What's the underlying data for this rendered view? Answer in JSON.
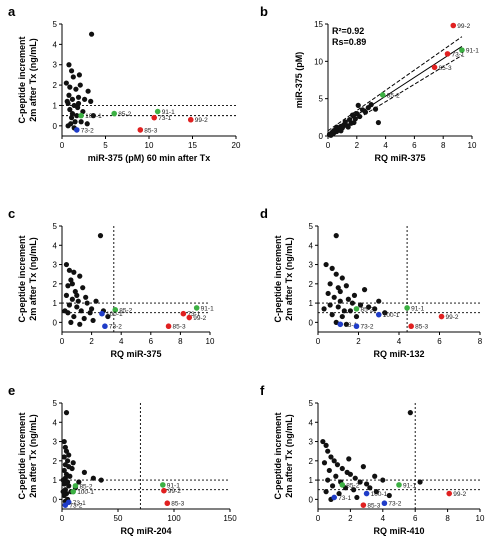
{
  "colors": {
    "black": "#111111",
    "green": "#3cb043",
    "red": "#e02020",
    "blue": "#1f3cc8"
  },
  "chart_data": [
    {
      "panel": "a",
      "type": "scatter",
      "xlabel": "miR-375 (pM) 60 min after Tx",
      "ylabel": [
        "C-peptide increment",
        "2m after Tx (ng/mL)"
      ],
      "xlim": [
        0,
        20
      ],
      "ylim": [
        -0.5,
        5
      ],
      "xticks": [
        0,
        5,
        10,
        15,
        20
      ],
      "yticks": [
        0,
        1,
        2,
        3,
        4,
        5
      ],
      "hlines": [
        1.0,
        0.5
      ],
      "black_points": [
        [
          0.8,
          3.0
        ],
        [
          1.1,
          2.7
        ],
        [
          1.3,
          2.4
        ],
        [
          2.0,
          2.5
        ],
        [
          2.1,
          2.0
        ],
        [
          0.9,
          1.9
        ],
        [
          1.6,
          1.8
        ],
        [
          0.8,
          1.5
        ],
        [
          1.2,
          1.3
        ],
        [
          1.9,
          1.4
        ],
        [
          0.6,
          1.2
        ],
        [
          1.4,
          1.0
        ],
        [
          1.8,
          0.9
        ],
        [
          0.9,
          0.8
        ],
        [
          1.2,
          0.6
        ],
        [
          2.4,
          0.7
        ],
        [
          1.1,
          0.4
        ],
        [
          1.5,
          0.2
        ],
        [
          2.2,
          0.2
        ],
        [
          0.7,
          0.0
        ],
        [
          1.4,
          -0.1
        ],
        [
          3.4,
          4.5
        ],
        [
          3.0,
          1.7
        ],
        [
          3.3,
          1.2
        ],
        [
          3.6,
          0.5
        ],
        [
          2.9,
          0.1
        ],
        [
          0.5,
          2.1
        ],
        [
          0.7,
          1.1
        ],
        [
          1.0,
          0.1
        ],
        [
          1.9,
          1.1
        ],
        [
          2.6,
          1.3
        ],
        [
          1.7,
          0.5
        ]
      ],
      "labeled_points": [
        {
          "label": "100-1",
          "x": 2.2,
          "y": 0.5,
          "color": "green"
        },
        {
          "label": "73-2",
          "x": 1.7,
          "y": -0.2,
          "color": "blue"
        },
        {
          "label": "85-2",
          "x": 6.0,
          "y": 0.6,
          "color": "green"
        },
        {
          "label": "91-1",
          "x": 11.0,
          "y": 0.7,
          "color": "green"
        },
        {
          "label": "73-1",
          "x": 10.6,
          "y": 0.4,
          "color": "red"
        },
        {
          "label": "99-2",
          "x": 14.8,
          "y": 0.3,
          "color": "red"
        },
        {
          "label": "85-3",
          "x": 9.0,
          "y": -0.2,
          "color": "red"
        }
      ]
    },
    {
      "panel": "b",
      "type": "scatter",
      "xlabel": "RQ miR-375",
      "ylabel": [
        "miR-375 (pM)"
      ],
      "xlim": [
        0,
        10
      ],
      "ylim": [
        0,
        15
      ],
      "xticks": [
        0,
        2,
        4,
        6,
        8,
        10
      ],
      "yticks": [
        0,
        5,
        10,
        15
      ],
      "annotations": [
        "R²=0.92",
        "Rs=0.89"
      ],
      "fit_line": [
        [
          0,
          0.3
        ],
        [
          9.3,
          12.0
        ]
      ],
      "ci_upper": [
        [
          0,
          0.7
        ],
        [
          9.3,
          13.3
        ]
      ],
      "ci_lower": [
        [
          0,
          -0.1
        ],
        [
          9.3,
          10.8
        ]
      ],
      "black_points": [
        [
          0.1,
          0.2
        ],
        [
          0.2,
          0.3
        ],
        [
          0.3,
          0.5
        ],
        [
          0.4,
          0.4
        ],
        [
          0.5,
          0.8
        ],
        [
          0.6,
          0.6
        ],
        [
          0.7,
          1.0
        ],
        [
          0.8,
          0.9
        ],
        [
          0.9,
          1.3
        ],
        [
          1.0,
          1.1
        ],
        [
          1.1,
          1.5
        ],
        [
          1.2,
          1.9
        ],
        [
          1.3,
          1.4
        ],
        [
          1.5,
          2.2
        ],
        [
          1.6,
          1.7
        ],
        [
          1.7,
          2.8
        ],
        [
          1.9,
          2.3
        ],
        [
          2.0,
          3.0
        ],
        [
          2.2,
          2.6
        ],
        [
          2.4,
          3.5
        ],
        [
          2.6,
          3.2
        ],
        [
          2.8,
          3.8
        ],
        [
          3.0,
          4.2
        ],
        [
          3.3,
          3.6
        ],
        [
          0.4,
          0.7
        ],
        [
          0.9,
          0.7
        ],
        [
          1.4,
          1.2
        ],
        [
          0.2,
          0.1
        ],
        [
          0.6,
          1.2
        ],
        [
          1.8,
          1.8
        ],
        [
          2.1,
          4.1
        ],
        [
          3.5,
          1.8
        ]
      ],
      "labeled_points": [
        {
          "label": "99-2",
          "x": 8.7,
          "y": 14.8,
          "color": "red"
        },
        {
          "label": "91-1",
          "x": 9.3,
          "y": 11.5,
          "color": "green"
        },
        {
          "label": "73-1",
          "x": 8.3,
          "y": 11.0,
          "color": "red"
        },
        {
          "label": "85-3",
          "x": 7.4,
          "y": 9.2,
          "color": "red"
        },
        {
          "label": "85-2",
          "x": 3.8,
          "y": 5.5,
          "color": "green"
        }
      ]
    },
    {
      "panel": "c",
      "type": "scatter",
      "xlabel": "RQ miR-375",
      "ylabel": [
        "C-peptide increment",
        "2m after Tx (ng/mL)"
      ],
      "xlim": [
        0,
        10
      ],
      "ylim": [
        -0.5,
        5
      ],
      "xticks": [
        0,
        2,
        4,
        6,
        8,
        10
      ],
      "yticks": [
        0,
        1,
        2,
        3,
        4,
        5
      ],
      "hlines": [
        1.0,
        0.5
      ],
      "vline": 3.5,
      "black_points": [
        [
          0.3,
          3.0
        ],
        [
          0.5,
          2.7
        ],
        [
          0.8,
          2.6
        ],
        [
          0.6,
          2.2
        ],
        [
          1.2,
          2.4
        ],
        [
          0.4,
          1.9
        ],
        [
          0.9,
          1.6
        ],
        [
          1.4,
          1.8
        ],
        [
          0.3,
          1.4
        ],
        [
          0.7,
          1.2
        ],
        [
          1.1,
          1.1
        ],
        [
          1.6,
          1.3
        ],
        [
          0.5,
          0.9
        ],
        [
          1.0,
          0.8
        ],
        [
          1.3,
          0.6
        ],
        [
          2.0,
          0.7
        ],
        [
          0.4,
          0.5
        ],
        [
          0.8,
          0.3
        ],
        [
          1.5,
          0.2
        ],
        [
          1.9,
          0.5
        ],
        [
          0.6,
          0.0
        ],
        [
          1.2,
          -0.1
        ],
        [
          2.6,
          4.5
        ],
        [
          2.3,
          1.1
        ],
        [
          2.8,
          0.6
        ],
        [
          3.1,
          0.3
        ],
        [
          1.7,
          1.0
        ],
        [
          0.2,
          0.6
        ],
        [
          2.1,
          0.1
        ],
        [
          1.0,
          1.4
        ],
        [
          0.7,
          2.0
        ]
      ],
      "labeled_points": [
        {
          "label": "85-2",
          "x": 3.6,
          "y": 0.65,
          "color": "green"
        },
        {
          "label": "73-2",
          "x": 2.9,
          "y": -0.2,
          "color": "blue"
        },
        {
          "label": "100-1",
          "x": 2.7,
          "y": 0.45,
          "color": "blue"
        },
        {
          "label": "73-1",
          "x": 8.2,
          "y": 0.45,
          "color": "red"
        },
        {
          "label": "91-1",
          "x": 9.1,
          "y": 0.75,
          "color": "green"
        },
        {
          "label": "99-2",
          "x": 8.6,
          "y": 0.25,
          "color": "red"
        },
        {
          "label": "85-3",
          "x": 7.2,
          "y": -0.2,
          "color": "red"
        }
      ]
    },
    {
      "panel": "d",
      "type": "scatter",
      "xlabel": "RQ miR-132",
      "ylabel": [
        "C-peptide increment",
        "2m after Tx (ng/mL)"
      ],
      "xlim": [
        0,
        8
      ],
      "ylim": [
        -0.5,
        5
      ],
      "xticks": [
        0,
        2,
        4,
        6,
        8
      ],
      "yticks": [
        0,
        1,
        2,
        3,
        4,
        5
      ],
      "hlines": [
        1.0,
        0.5
      ],
      "vline": 4.4,
      "black_points": [
        [
          0.4,
          3.0
        ],
        [
          0.7,
          2.8
        ],
        [
          0.9,
          2.5
        ],
        [
          1.2,
          2.3
        ],
        [
          0.6,
          2.0
        ],
        [
          1.0,
          1.8
        ],
        [
          1.4,
          1.9
        ],
        [
          0.5,
          1.5
        ],
        [
          0.8,
          1.3
        ],
        [
          1.1,
          1.1
        ],
        [
          1.5,
          1.2
        ],
        [
          1.8,
          1.4
        ],
        [
          0.6,
          0.9
        ],
        [
          1.0,
          0.8
        ],
        [
          1.3,
          0.6
        ],
        [
          0.7,
          0.4
        ],
        [
          1.2,
          0.3
        ],
        [
          1.6,
          0.6
        ],
        [
          0.9,
          0.0
        ],
        [
          1.4,
          -0.1
        ],
        [
          0.9,
          4.5
        ],
        [
          3.0,
          1.1
        ],
        [
          2.8,
          0.7
        ],
        [
          3.3,
          0.5
        ],
        [
          2.1,
          0.9
        ],
        [
          1.9,
          0.3
        ],
        [
          0.3,
          0.7
        ],
        [
          2.5,
          0.8
        ],
        [
          1.7,
          1.0
        ],
        [
          1.1,
          1.6
        ],
        [
          2.3,
          1.7
        ]
      ],
      "labeled_points": [
        {
          "label": "85-2",
          "x": 1.9,
          "y": 0.7,
          "color": "green"
        },
        {
          "label": "73-1",
          "x": 1.1,
          "y": -0.1,
          "color": "blue"
        },
        {
          "label": "73-2",
          "x": 1.9,
          "y": -0.2,
          "color": "blue"
        },
        {
          "label": "100-1",
          "x": 3.0,
          "y": 0.4,
          "color": "blue"
        },
        {
          "label": "91-1",
          "x": 4.4,
          "y": 0.75,
          "color": "green"
        },
        {
          "label": "85-3",
          "x": 4.6,
          "y": -0.2,
          "color": "red"
        },
        {
          "label": "99-2",
          "x": 6.1,
          "y": 0.3,
          "color": "red"
        }
      ]
    },
    {
      "panel": "e",
      "type": "scatter",
      "xlabel": "RQ miR-204",
      "ylabel": [
        "C-peptide increment",
        "2m after Tx (ng/mL)"
      ],
      "xlim": [
        0,
        150
      ],
      "ylim": [
        -0.5,
        5
      ],
      "xticks": [
        0,
        50,
        100,
        150
      ],
      "yticks": [
        0,
        1,
        2,
        3,
        4,
        5
      ],
      "hlines": [
        1.0,
        0.5
      ],
      "vline": 70,
      "black_points": [
        [
          2,
          3.0
        ],
        [
          3,
          2.7
        ],
        [
          4,
          2.5
        ],
        [
          2,
          2.2
        ],
        [
          5,
          2.0
        ],
        [
          3,
          1.8
        ],
        [
          6,
          1.7
        ],
        [
          2,
          1.5
        ],
        [
          4,
          1.3
        ],
        [
          7,
          1.2
        ],
        [
          3,
          1.1
        ],
        [
          5,
          0.9
        ],
        [
          2,
          0.8
        ],
        [
          6,
          0.7
        ],
        [
          3,
          0.5
        ],
        [
          4,
          0.3
        ],
        [
          2,
          0.2
        ],
        [
          5,
          0.0
        ],
        [
          3,
          -0.1
        ],
        [
          4,
          4.5
        ],
        [
          20,
          1.4
        ],
        [
          28,
          1.1
        ],
        [
          35,
          1.0
        ],
        [
          15,
          0.9
        ],
        [
          12,
          0.6
        ],
        [
          8,
          0.4
        ],
        [
          9,
          1.6
        ],
        [
          1,
          1.0
        ],
        [
          6,
          2.3
        ],
        [
          10,
          1.9
        ],
        [
          4,
          0.9
        ],
        [
          1,
          0.4
        ]
      ],
      "labeled_points": [
        {
          "label": "85-2",
          "x": 12,
          "y": 0.7,
          "color": "green"
        },
        {
          "label": "100-1",
          "x": 10,
          "y": 0.4,
          "color": "green"
        },
        {
          "label": "73-1",
          "x": 6,
          "y": -0.15,
          "color": "blue"
        },
        {
          "label": "73-2",
          "x": 3,
          "y": -0.3,
          "color": "blue"
        },
        {
          "label": "91-1",
          "x": 90,
          "y": 0.75,
          "color": "green"
        },
        {
          "label": "99-2",
          "x": 91,
          "y": 0.45,
          "color": "red"
        },
        {
          "label": "85-3",
          "x": 94,
          "y": -0.2,
          "color": "red"
        }
      ]
    },
    {
      "panel": "f",
      "type": "scatter",
      "xlabel": "RQ miR-410",
      "ylabel": [
        "C-peptide increment",
        "2m after Tx (ng/mL)"
      ],
      "xlim": [
        0,
        10
      ],
      "ylim": [
        -0.5,
        5
      ],
      "xticks": [
        0,
        2,
        4,
        6,
        8,
        10
      ],
      "yticks": [
        0,
        1,
        2,
        3,
        4,
        5
      ],
      "hlines": [
        1.0,
        0.5
      ],
      "vline": 6.0,
      "black_points": [
        [
          0.3,
          3.0
        ],
        [
          0.5,
          2.8
        ],
        [
          0.6,
          2.5
        ],
        [
          0.8,
          2.2
        ],
        [
          1.0,
          2.0
        ],
        [
          0.4,
          1.9
        ],
        [
          1.2,
          1.8
        ],
        [
          1.5,
          1.6
        ],
        [
          0.7,
          1.5
        ],
        [
          1.8,
          1.4
        ],
        [
          2.0,
          1.3
        ],
        [
          1.1,
          1.2
        ],
        [
          2.3,
          1.1
        ],
        [
          0.6,
          1.0
        ],
        [
          1.4,
          0.9
        ],
        [
          2.6,
          0.9
        ],
        [
          3.0,
          0.8
        ],
        [
          0.9,
          0.7
        ],
        [
          1.7,
          0.6
        ],
        [
          2.2,
          0.5
        ],
        [
          0.5,
          0.4
        ],
        [
          1.3,
          0.3
        ],
        [
          3.2,
          0.6
        ],
        [
          3.6,
          0.4
        ],
        [
          4.0,
          1.0
        ],
        [
          0.8,
          0.0
        ],
        [
          2.4,
          0.1
        ],
        [
          5.7,
          4.5
        ],
        [
          6.3,
          0.9
        ],
        [
          4.4,
          0.2
        ],
        [
          2.8,
          1.7
        ],
        [
          3.5,
          1.2
        ],
        [
          1.9,
          2.1
        ]
      ],
      "labeled_points": [
        {
          "label": "85-2",
          "x": 1.5,
          "y": 0.75,
          "color": "green"
        },
        {
          "label": "73-1",
          "x": 1.0,
          "y": 0.1,
          "color": "blue"
        },
        {
          "label": "100-1",
          "x": 3.0,
          "y": 0.3,
          "color": "blue"
        },
        {
          "label": "91-1",
          "x": 5.0,
          "y": 0.75,
          "color": "green"
        },
        {
          "label": "85-3",
          "x": 2.8,
          "y": -0.3,
          "color": "red"
        },
        {
          "label": "73-2",
          "x": 4.1,
          "y": -0.2,
          "color": "blue"
        },
        {
          "label": "99-2",
          "x": 8.1,
          "y": 0.3,
          "color": "red"
        }
      ]
    }
  ]
}
